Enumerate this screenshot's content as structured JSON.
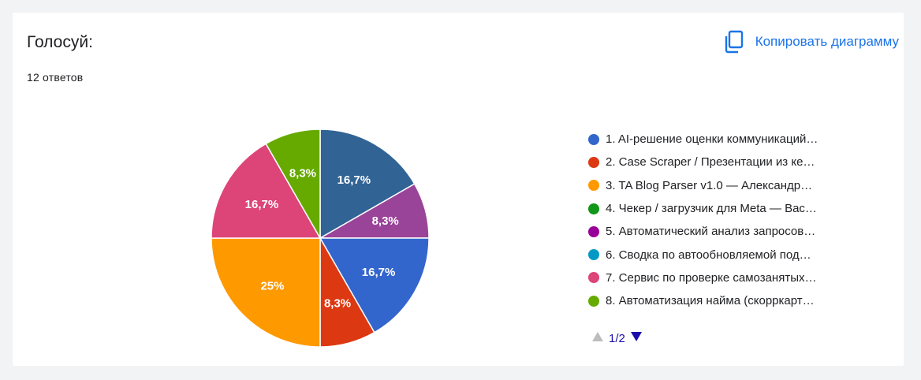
{
  "card": {
    "title": "Голосуй:",
    "responses": "12 ответов",
    "copy_label": "Копировать диаграмму",
    "copy_icon": "copy-icon"
  },
  "chart_data": {
    "type": "pie",
    "start_angle_deg": 0,
    "direction": "clockwise",
    "slices": [
      {
        "label": "1. AI-решение оценки коммуникаций…",
        "percent_label": "16,7%",
        "value": 16.7,
        "color": "#3366cc"
      },
      {
        "label": "2. Case Scraper / Презентации из ке…",
        "percent_label": "8,3%",
        "value": 8.3,
        "color": "#dc3912"
      },
      {
        "label": "3. TA Blog Parser v1.0 — Александр…",
        "percent_label": "25%",
        "value": 25,
        "color": "#ff9900"
      },
      {
        "label": "4. Чекер / загрузчик для Meta — Вас…",
        "percent_label": "",
        "value": 0,
        "color": "#109618"
      },
      {
        "label": "5. Автоматический анализ запросов…",
        "percent_label": "",
        "value": 0,
        "color": "#990099"
      },
      {
        "label": "6. Сводка по автообновляемой под…",
        "percent_label": "",
        "value": 0,
        "color": "#0099c6"
      },
      {
        "label": "7. Сервис по проверке самозанятых…",
        "percent_label": "16,7%",
        "value": 16.7,
        "color": "#dd4477"
      },
      {
        "label": "8. Автоматизация найма (скорркарт…",
        "percent_label": "8,3%",
        "value": 8.3,
        "color": "#66aa00"
      }
    ],
    "hidden_slices": [
      {
        "percent_label": "16,7%",
        "value": 16.7,
        "color": "#316395"
      },
      {
        "percent_label": "8,3%",
        "value": 8.3,
        "color": "#994499"
      }
    ],
    "legend_position": "right"
  },
  "pager": {
    "text": "1/2",
    "prev_icon": "triangle-up-icon",
    "next_icon": "triangle-down-icon",
    "disabled_color": "#bdbdbd",
    "active_color": "#1a0dab"
  }
}
